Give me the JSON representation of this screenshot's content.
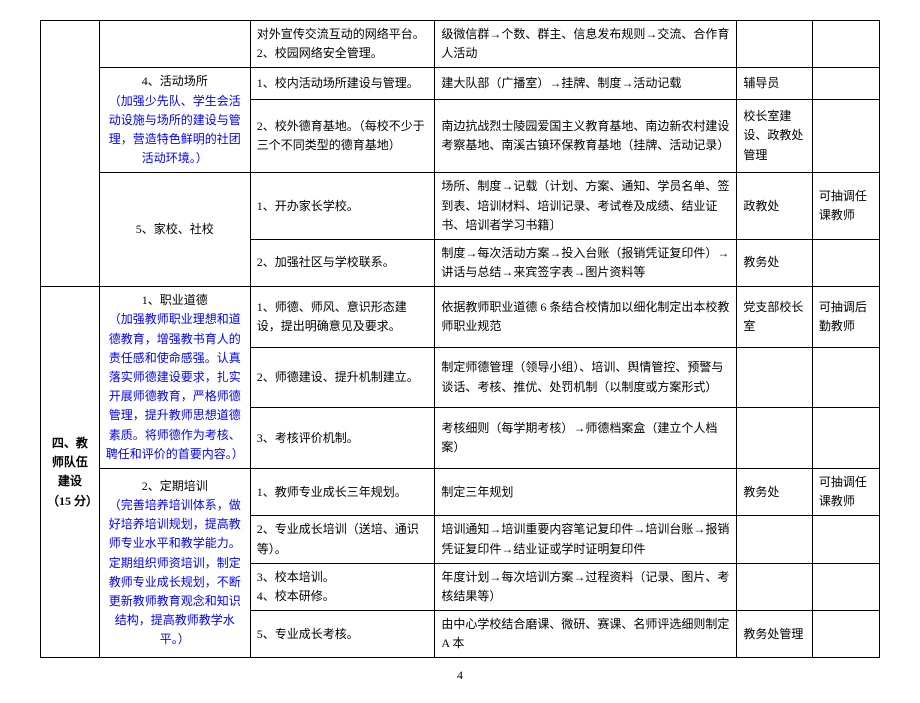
{
  "rows": {
    "r0": {
      "c3": "对外宣传交流互动的网络平台。\n2、校园网络安全管理。",
      "c4": "级微信群→个数、群主、信息发布规则→交流、合作育人活动"
    },
    "venue": {
      "title": "4、活动场所",
      "desc": "（加强少先队、学生会活动设施与场所的建设与管理，营造特色鲜明的社团活动环境。）",
      "r1": {
        "c3": "1、校内活动场所建设与管理。",
        "c4": "建大队部（广播室）→挂牌、制度→活动记载",
        "c5": "辅导员"
      },
      "r2": {
        "c3": "2、校外德育基地。（每校不少于三个不同类型的德育基地）",
        "c4": "南边抗战烈士陵园爱国主义教育基地、南边新农村建设考察基地、南溪古镇环保教育基地（挂牌、活动记录）",
        "c5": "校长室建设、政教处管理"
      }
    },
    "home": {
      "title": "5、家校、社校",
      "r1": {
        "c3": "1、开办家长学校。",
        "c4": "场所、制度→记载（计划、方案、通知、学员名单、签到表、培训材料、培训记录、考试卷及成绩、结业证书、培训者学习书籍〕",
        "c5": "政教处",
        "c6": "可抽调任课教师"
      },
      "r2": {
        "c3": "2、加强社区与学校联系。",
        "c4": "制度→每次活动方案→投入台账（报销凭证复印件）→讲话与总结→来宾签字表→图片资料等",
        "c5": "教务处"
      }
    },
    "section4": {
      "title": "四、教师队伍建设（15 分）"
    },
    "ethics": {
      "title": "1、职业道德",
      "desc": "（加强教师职业理想和道德教育，增强教书育人的责任感和使命感强。认真落实师德建设要求，扎实开展师德教育，严格师德管理，提升教师思想道德素质。将师德作为考核、聘任和评价的首要内容。）",
      "r1": {
        "c3": "1、师德、师风、意识形态建设，提出明确意见及要求。",
        "c4": "依据教师职业道德 6 条结合校情加以细化制定出本校教师职业规范",
        "c5": "党支部校长室",
        "c6": "可抽调后勤教师"
      },
      "r2": {
        "c3": "2、师德建设、提升机制建立。",
        "c4": "制定师德管理（领导小组）、培训、舆情管控、预警与谈话、考核、推优、处罚机制（以制度或方案形式）"
      },
      "r3": {
        "c3": "3、考核评价机制。",
        "c4": "考核细则（每学期考核）→师德档案盒（建立个人档案）"
      }
    },
    "training": {
      "title": "2、定期培训",
      "desc": "（完善培养培训体系，做好培养培训规划，提高教师专业水平和教学能力。定期组织师资培训，制定教师专业成长规划，不断更新教师教育观念和知识结构，提高教师教学水平。）",
      "r1": {
        "c3": "1、教师专业成长三年规划。",
        "c4": "制定三年规划",
        "c5": "教务处",
        "c6": "可抽调任课教师"
      },
      "r2": {
        "c3": "2、专业成长培训（送培、通识等）。",
        "c4": "培训通知→培训重要内容笔记复印件→培训台账→报销凭证复印件→结业证或学时证明复印件"
      },
      "r3": {
        "c3": "3、校本培训。\n4、校本研修。",
        "c4": "年度计划→每次培训方案→过程资料（记录、图片、考核结果等）"
      },
      "r5": {
        "c3": "5、专业成长考核。",
        "c4": "由中心学校结合磨课、微研、赛课、名师评选细则制定 A 本",
        "c5": "教务处管理"
      }
    }
  },
  "pageNum": "4"
}
